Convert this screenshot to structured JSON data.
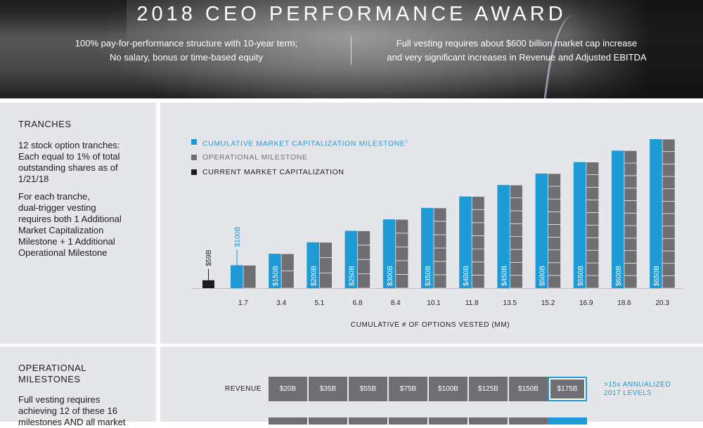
{
  "header": {
    "title": "2018 CEO PERFORMANCE AWARD",
    "left_line1": "100% pay-for-performance structure with 10-year term;",
    "left_line2": "No salary, bonus or time-based equity",
    "right_line1": "Full vesting requires about $600 billion market cap increase",
    "right_line2": "and very significant increases in Revenue and Adjusted EBITDA"
  },
  "tranches_panel": {
    "heading": "TRANCHES",
    "para1": [
      "12 stock option tranches:",
      "Each equal to 1% of total",
      "outstanding shares as of",
      "1/21/18"
    ],
    "para2": [
      "For each tranche,",
      "dual-trigger vesting",
      "requires both 1 Additional",
      "Market Capitalization",
      "Milestone + 1 Additional",
      "Operational Milestone"
    ]
  },
  "legend": {
    "market_cap": "CUMULATIVE MARKET CAPITALIZATION MILESTONE",
    "market_cap_sup": "1",
    "operational": "OPERATIONAL MILESTONE",
    "current": "CURRENT MARKET CAPITALIZATION"
  },
  "colors": {
    "blue": "#1e9ad6",
    "gray": "#6f6f73",
    "black": "#1c1c1c",
    "panel": "#e5e6ea"
  },
  "chart_data": {
    "type": "bar",
    "xlabel": "CUMULATIVE # OF OPTIONS VESTED (MM)",
    "current": {
      "label": "$59B",
      "value": 59
    },
    "categories": [
      "1.7",
      "3.4",
      "5.1",
      "6.8",
      "8.4",
      "10.1",
      "11.8",
      "13.5",
      "15.2",
      "16.9",
      "18.6",
      "20.3"
    ],
    "series": [
      {
        "name": "CUMULATIVE MARKET CAPITALIZATION MILESTONE",
        "values": [
          100,
          150,
          200,
          250,
          300,
          350,
          400,
          450,
          500,
          550,
          600,
          650
        ]
      },
      {
        "name": "OPERATIONAL MILESTONE",
        "values": [
          1,
          2,
          3,
          4,
          5,
          6,
          7,
          8,
          9,
          10,
          11,
          12
        ]
      }
    ],
    "bar_labels": [
      "$100B",
      "$150B",
      "$200B",
      "$250B",
      "$300B",
      "$350B",
      "$400B",
      "$450B",
      "$500B",
      "$550B",
      "$600B",
      "$650B"
    ]
  },
  "ops_panel": {
    "heading_line1": "OPERATIONAL",
    "heading_line2": "MILESTONES",
    "text": [
      "Full vesting requires",
      "achieving 12 of these 16",
      "milestones AND all market"
    ]
  },
  "revenue_row": {
    "label": "REVENUE",
    "values": [
      "$20B",
      "$35B",
      "$55B",
      "$75B",
      "$100B",
      "$125B",
      "$150B",
      "$175B"
    ],
    "note_line1": ">15x ANNUALIZED",
    "note_line2": "2017 LEVELS"
  }
}
